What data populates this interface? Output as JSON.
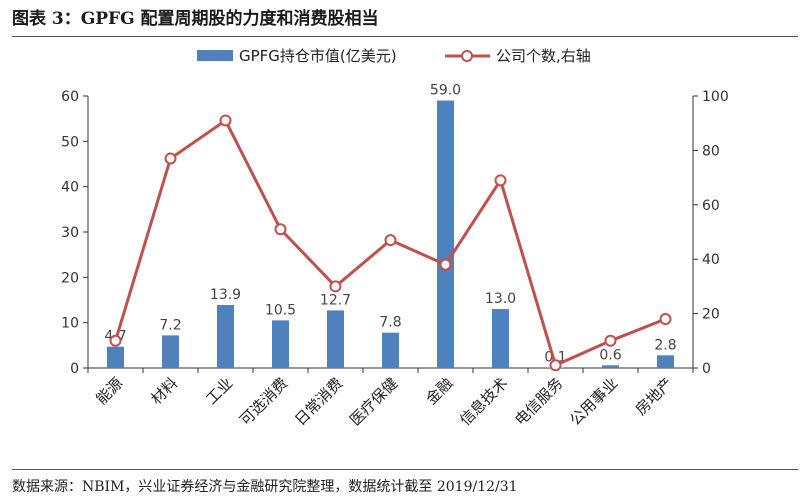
{
  "page": {
    "title": "图表 3：GPFG 配置周期股的力度和消费股相当",
    "source": "数据来源：NBIM，兴业证券经济与金融研究院整理，数据统计截至 2019/12/31"
  },
  "colors": {
    "bar": "#4F81BD",
    "line": "#C0504D",
    "marker_fill": "#ffffff",
    "axis": "#333333"
  },
  "chart_data": {
    "type": "bar",
    "categories": [
      "能源",
      "材料",
      "工业",
      "可选消费",
      "日常消费",
      "医疗保健",
      "金融",
      "信息技术",
      "电信服务",
      "公用事业",
      "房地产"
    ],
    "series": [
      {
        "name": "GPFG持仓市值(亿美元)",
        "type": "bar",
        "axis": "left",
        "values": [
          4.7,
          7.2,
          13.9,
          10.5,
          12.7,
          7.8,
          59.0,
          13.0,
          0.1,
          0.6,
          2.8
        ],
        "labels": [
          "4.7",
          "7.2",
          "13.9",
          "10.5",
          "12.7",
          "7.8",
          "59.0",
          "13.0",
          "0.1",
          "0.6",
          "2.8"
        ]
      },
      {
        "name": "公司个数,右轴",
        "type": "line",
        "axis": "right",
        "values": [
          10,
          77,
          91,
          51,
          30,
          47,
          38,
          69,
          1,
          10,
          18
        ]
      }
    ],
    "ylim": [
      0,
      60
    ],
    "yticks": [
      "0",
      "10",
      "20",
      "30",
      "40",
      "50",
      "60"
    ],
    "y2lim": [
      0,
      100
    ],
    "y2ticks": [
      "0",
      "20",
      "40",
      "60",
      "80",
      "100"
    ],
    "legend_position": "top-center",
    "grid": false
  }
}
